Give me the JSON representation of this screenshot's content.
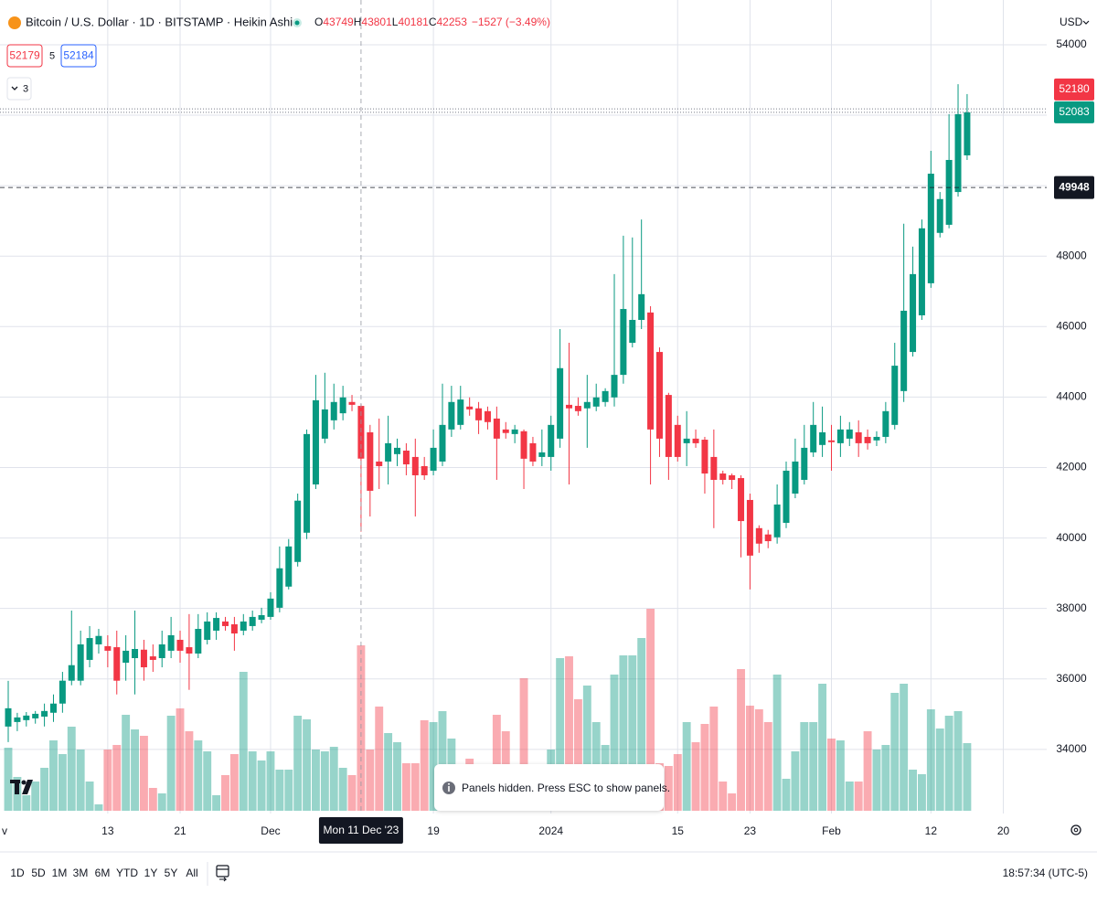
{
  "ui": {
    "symbol_title": "Bitcoin / U.S. Dollar · 1D · BITSTAMP · Heikin Ashi",
    "ohlc_letters": [
      "O",
      "H",
      "L",
      "C"
    ],
    "change": "−1527 (−3.49%)",
    "bid": "52179",
    "spread": "5",
    "ask": "52184",
    "indicators_count": "3",
    "currency": "USD",
    "ranges": [
      "1D",
      "5D",
      "1M",
      "3M",
      "6M",
      "YTD",
      "1Y",
      "5Y",
      "All"
    ],
    "clock": "18:57:34 (UTC-5)",
    "toast": "Panels hidden. Press ESC to show panels."
  },
  "chart_data": {
    "type": "candlestick",
    "up_color": "#089981",
    "down_color": "#f23645",
    "open": [
      34648,
      34777,
      34830,
      34880,
      34930,
      35040,
      35300,
      35950,
      35950,
      36540,
      36980,
      36930,
      36900,
      36460,
      36590,
      36830,
      36640,
      36590,
      36800,
      37110,
      36900,
      36720,
      37110,
      37370,
      37630,
      37550,
      37370,
      37500,
      37680,
      37760,
      38020,
      38620,
      39320,
      40150,
      41520,
      42820,
      43340,
      43540,
      43860,
      43749,
      43000,
      42170,
      42170,
      42380,
      42480,
      42300,
      42040,
      41910,
      42170,
      43080,
      43210,
      43730,
      43680,
      43600,
      43390,
      43080,
      42950,
      43030,
      42690,
      42300,
      42300,
      42820,
      43780,
      43750,
      43680,
      43730,
      43860,
      43990,
      44630,
      45540,
      46190,
      46400,
      45280,
      44060,
      43210,
      42690,
      42820,
      42790,
      42300,
      41830,
      41780,
      41700,
      41080,
      40280,
      40100,
      40020,
      40430,
      41260,
      41650,
      42430,
      42640,
      42770,
      42690,
      42820,
      43000,
      42870,
      42770,
      42870,
      43210,
      44170,
      45280,
      46320,
      47230,
      48660,
      48890,
      49820,
      50860
    ],
    "high": [
      35945,
      35037,
      35060,
      35090,
      35300,
      35560,
      36200,
      37940,
      37370,
      37500,
      37420,
      37240,
      37370,
      37240,
      37940,
      37110,
      36980,
      37370,
      37760,
      37370,
      37840,
      37840,
      37890,
      37890,
      37760,
      37760,
      37840,
      37940,
      38020,
      38460,
      39760,
      39970,
      41260,
      43080,
      44630,
      44690,
      44380,
      44320,
      44060,
      43801,
      43210,
      43390,
      43470,
      42820,
      42690,
      42820,
      42300,
      43080,
      44380,
      44320,
      44320,
      43990,
      43860,
      43730,
      43730,
      43290,
      43210,
      43080,
      42870,
      43080,
      43470,
      45930,
      45540,
      43990,
      44630,
      44380,
      44250,
      47490,
      48580,
      48530,
      49040,
      46580,
      45410,
      44120,
      43470,
      43600,
      43080,
      42870,
      43080,
      41910,
      41830,
      41780,
      41260,
      40360,
      40230,
      41520,
      42170,
      42820,
      43210,
      43860,
      43730,
      43210,
      43470,
      43290,
      43340,
      43080,
      43030,
      43860,
      45540,
      48920,
      48270,
      49040,
      50990,
      49820,
      52030,
      52880,
      52600
    ],
    "low": [
      34207,
      34518,
      34650,
      34730,
      34650,
      34780,
      35040,
      35820,
      35820,
      36330,
      36720,
      36330,
      35560,
      35950,
      35560,
      35950,
      36200,
      36330,
      36590,
      36460,
      35690,
      36590,
      36980,
      37110,
      37370,
      36800,
      37240,
      37370,
      37580,
      37680,
      37890,
      38540,
      39190,
      39970,
      41390,
      42690,
      43080,
      43340,
      43600,
      40181,
      40610,
      41390,
      41520,
      42040,
      41780,
      40610,
      41650,
      41780,
      42040,
      42870,
      43080,
      43470,
      42950,
      43080,
      41650,
      42820,
      42690,
      41390,
      42040,
      42040,
      41910,
      42560,
      41520,
      43470,
      42560,
      43600,
      43730,
      43730,
      44380,
      45410,
      45930,
      41520,
      42300,
      41650,
      42170,
      42040,
      42560,
      41260,
      40280,
      41520,
      41390,
      39450,
      38540,
      39580,
      39710,
      39840,
      40280,
      41130,
      41520,
      42300,
      42300,
      41910,
      42300,
      42610,
      42300,
      42510,
      42610,
      42690,
      43080,
      43860,
      45150,
      46190,
      47100,
      48530,
      48790,
      49690,
      50730
    ],
    "close": [
      35167,
      34907,
      34960,
      35010,
      35090,
      35300,
      35950,
      36390,
      36980,
      37160,
      37220,
      36800,
      35950,
      36800,
      36850,
      36330,
      36540,
      36980,
      37240,
      36800,
      36720,
      37420,
      37630,
      37730,
      37500,
      37290,
      37630,
      37760,
      37810,
      38280,
      39140,
      39760,
      41060,
      42950,
      43910,
      43650,
      43860,
      43990,
      43780,
      42253,
      41340,
      42040,
      42690,
      42560,
      42090,
      41780,
      41780,
      42560,
      43210,
      43860,
      43930,
      43650,
      43340,
      43290,
      42820,
      42980,
      43080,
      42250,
      42170,
      42430,
      43210,
      44820,
      43680,
      43600,
      43860,
      43990,
      44170,
      44630,
      46500,
      46190,
      46920,
      43080,
      42820,
      42300,
      42300,
      42820,
      42690,
      41830,
      41650,
      41650,
      41650,
      40480,
      39500,
      39840,
      39910,
      40950,
      41910,
      42170,
      42560,
      43210,
      43000,
      42720,
      43080,
      43080,
      42690,
      42690,
      42870,
      43600,
      44890,
      46450,
      47490,
      48790,
      50340,
      49620,
      50730,
      52030,
      52083
    ],
    "volume": [
      69,
      37,
      17,
      32,
      47,
      77,
      62,
      92,
      67,
      32,
      7,
      67,
      72,
      105,
      89,
      82,
      25,
      19,
      104,
      112,
      87,
      77,
      65,
      17,
      39,
      62,
      152,
      65,
      55,
      65,
      45,
      45,
      104,
      100,
      67,
      65,
      70,
      47,
      39,
      181,
      67,
      114,
      85,
      75,
      52,
      52,
      99,
      97,
      109,
      79,
      47,
      57,
      32,
      47,
      105,
      87,
      42,
      145,
      47,
      27,
      67,
      167,
      169,
      122,
      137,
      97,
      72,
      149,
      170,
      170,
      189,
      221,
      52,
      49,
      62,
      97,
      75,
      95,
      114,
      32,
      19,
      155,
      115,
      111,
      97,
      149,
      35,
      65,
      97,
      97,
      139,
      79,
      77,
      32,
      32,
      87,
      67,
      72,
      129,
      139,
      45,
      40,
      111,
      90,
      104,
      109,
      74
    ],
    "xlim": [
      -0.91,
      114.8
    ],
    "xticks": [
      {
        "value": -1,
        "label": "v"
      },
      {
        "value": 11,
        "label": "13"
      },
      {
        "value": 19,
        "label": "21"
      },
      {
        "value": 29,
        "label": "Dec"
      },
      {
        "value": 47,
        "label": "19"
      },
      {
        "value": 60,
        "label": "2024"
      },
      {
        "value": 74,
        "label": "15"
      },
      {
        "value": 82,
        "label": "23"
      },
      {
        "value": 91,
        "label": "Feb"
      },
      {
        "value": 102,
        "label": "12"
      },
      {
        "value": 110,
        "label": "20"
      }
    ],
    "ylim": [
      32180,
      55270
    ],
    "yticks": [
      34000,
      36000,
      38000,
      40000,
      42000,
      44000,
      46000,
      48000,
      50000,
      52000,
      54000
    ],
    "grid": true,
    "price_lines": [
      {
        "value": 52083,
        "color": "#089981"
      },
      {
        "value": 52180,
        "color": "#f23645"
      }
    ],
    "crosshair": {
      "price": 49948,
      "label": "Mon 11 Dec '23",
      "bar": 39
    }
  }
}
